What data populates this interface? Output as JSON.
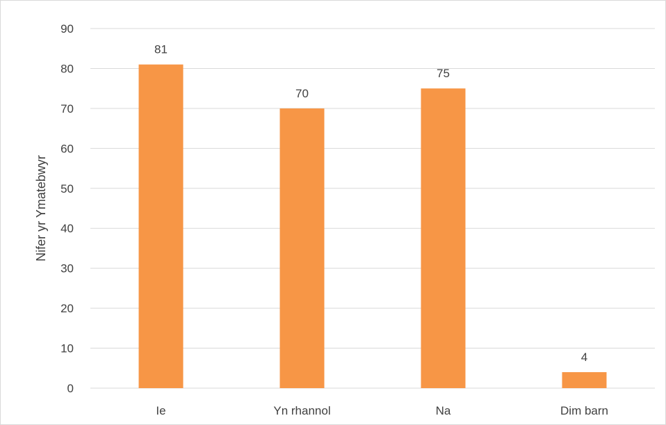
{
  "chart_data": {
    "type": "bar",
    "title": "",
    "xlabel": "",
    "ylabel": "Nifer yr Ymatebwyr",
    "categories": [
      "Ie",
      "Yn rhannol",
      "Na",
      "Dim barn"
    ],
    "values": [
      81,
      70,
      75,
      4
    ],
    "data_labels": [
      "81",
      "70",
      "75",
      "4"
    ],
    "ylim": [
      0,
      90
    ],
    "yticks": [
      0,
      10,
      20,
      30,
      40,
      50,
      60,
      70,
      80,
      90
    ],
    "grid": true,
    "legend": "none",
    "colors": {
      "bar": "#F79646",
      "grid": "#d9d9d9",
      "text": "#404040"
    }
  }
}
